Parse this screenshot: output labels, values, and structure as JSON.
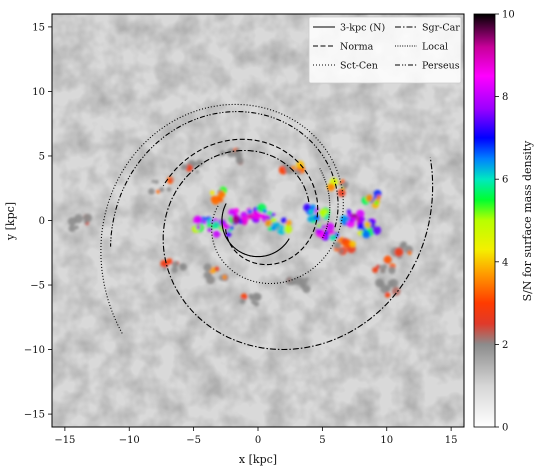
{
  "chart_data": {
    "type": "heatmap",
    "title": "",
    "xlabel": "x [kpc]",
    "ylabel": "y [kpc]",
    "xlim": [
      -16,
      16
    ],
    "ylim": [
      -16,
      16
    ],
    "x_ticks": [
      -15,
      -10,
      -5,
      0,
      5,
      10,
      15
    ],
    "y_ticks": [
      -15,
      -10,
      -5,
      0,
      5,
      10,
      15
    ],
    "x_tick_labels": [
      "−15",
      "−10",
      "−5",
      "0",
      "5",
      "10",
      "15"
    ],
    "y_tick_labels": [
      "−15",
      "−10",
      "−5",
      "0",
      "5",
      "10",
      "15"
    ],
    "grid": false,
    "colorbar": {
      "label": "S/N for surface mass density",
      "range": [
        0,
        10
      ],
      "ticks": [
        0,
        2,
        4,
        6,
        8,
        10
      ],
      "colormap": "gist_ncar-like (white-gray-red-yellow-green-blue-purple-black)"
    },
    "legend": {
      "placement": "top-right",
      "entries": [
        {
          "label": "3-kpc (N)",
          "style": "solid"
        },
        {
          "label": "Sgr-Car",
          "style": "dashdot"
        },
        {
          "label": "Norma",
          "style": "dashed"
        },
        {
          "label": "Local",
          "style": "densely-dotted"
        },
        {
          "label": "Sct-Cen",
          "style": "dotted"
        },
        {
          "label": "Perseus",
          "style": "dash-dot-dot"
        }
      ]
    },
    "arms": [
      {
        "name": "3-kpc (N)",
        "style": "solid",
        "r_start": 2.8,
        "theta_start_deg": 152,
        "theta_end_deg": 330,
        "pitch_deg": 0
      },
      {
        "name": "Norma",
        "style": "dashed",
        "r_start": 2.6,
        "theta_start_deg": 195,
        "theta_end_deg": 520,
        "pitch_deg": 11
      },
      {
        "name": "Sct-Cen",
        "style": "dotted",
        "r_start": 3.3,
        "theta_start_deg": 160,
        "theta_end_deg": 580,
        "pitch_deg": 11
      },
      {
        "name": "Sgr-Car",
        "style": "dashdot",
        "r_start": 4.2,
        "theta_start_deg": 20,
        "theta_end_deg": 380,
        "pitch_deg": 11
      },
      {
        "name": "Local",
        "style": "densely-dotted",
        "r_start": 5.2,
        "theta_start_deg": -15,
        "theta_end_deg": 40,
        "pitch_deg": 11
      },
      {
        "name": "Perseus",
        "style": "dash-dot-dot",
        "r_start": 6.0,
        "theta_start_deg": -5,
        "theta_end_deg": 190,
        "pitch_deg": 11
      }
    ],
    "high_sn_clumps": [
      {
        "x": -7.5,
        "y": 2.7,
        "sn": 4.5
      },
      {
        "x": -6.6,
        "y": -3.4,
        "sn": 3.5
      },
      {
        "x": -5.0,
        "y": 4.2,
        "sn": 4.0
      },
      {
        "x": -4.3,
        "y": -0.2,
        "sn": 8.5
      },
      {
        "x": -3.5,
        "y": 1.9,
        "sn": 5.5
      },
      {
        "x": -3.2,
        "y": -4.1,
        "sn": 4.0
      },
      {
        "x": -2.6,
        "y": -0.6,
        "sn": 9.0
      },
      {
        "x": -2.0,
        "y": 5.0,
        "sn": 3.5
      },
      {
        "x": -1.3,
        "y": 0.3,
        "sn": 9.5
      },
      {
        "x": -0.8,
        "y": -6.0,
        "sn": 3.0
      },
      {
        "x": 0.6,
        "y": 0.5,
        "sn": 9.0
      },
      {
        "x": 1.6,
        "y": -0.4,
        "sn": 7.5
      },
      {
        "x": 2.6,
        "y": 3.9,
        "sn": 4.0
      },
      {
        "x": 3.1,
        "y": -4.9,
        "sn": 3.5
      },
      {
        "x": 4.5,
        "y": 0.6,
        "sn": 8.0
      },
      {
        "x": 5.3,
        "y": -0.8,
        "sn": 9.0
      },
      {
        "x": 6.1,
        "y": 2.6,
        "sn": 5.0
      },
      {
        "x": 6.6,
        "y": -1.9,
        "sn": 4.5
      },
      {
        "x": 7.3,
        "y": 0.2,
        "sn": 9.5
      },
      {
        "x": 8.6,
        "y": -0.6,
        "sn": 8.0
      },
      {
        "x": 9.1,
        "y": 1.6,
        "sn": 7.0
      },
      {
        "x": 9.7,
        "y": -3.4,
        "sn": 4.0
      },
      {
        "x": 11.0,
        "y": -2.3,
        "sn": 3.5
      },
      {
        "x": 10.2,
        "y": -5.3,
        "sn": 3.0
      },
      {
        "x": -14.0,
        "y": -0.2,
        "sn": 2.5
      }
    ]
  }
}
